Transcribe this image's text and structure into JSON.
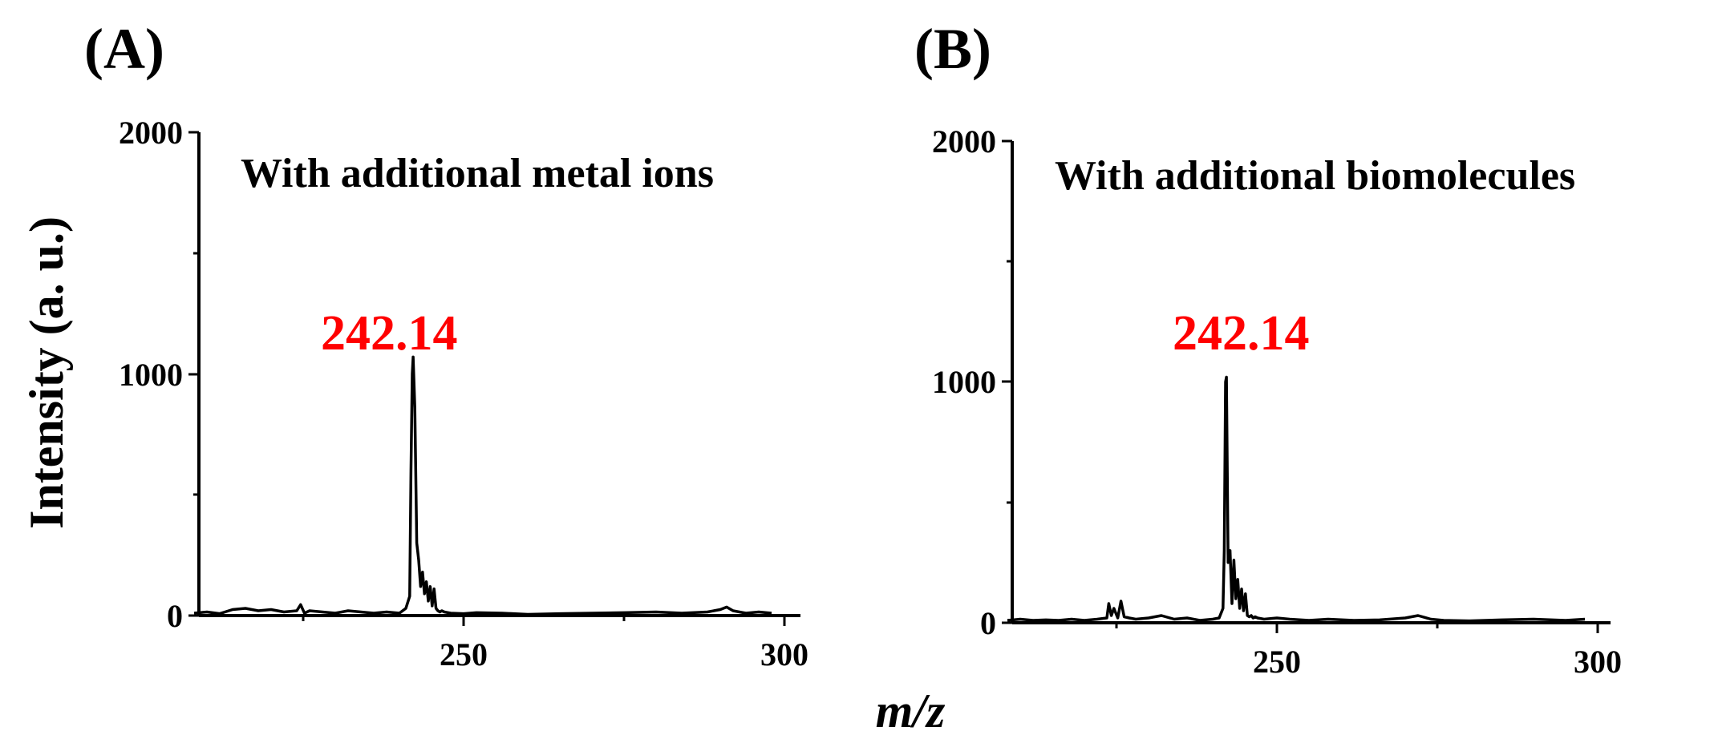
{
  "chart_data": [
    {
      "type": "line",
      "panel": "(A)",
      "annotation": "With additional metal ions",
      "xlabel": "m/z",
      "ylabel": "Intensity (a. u.)",
      "xlim": [
        208,
        300
      ],
      "ylim": [
        0,
        2000
      ],
      "xticks": [
        "250",
        "300"
      ],
      "yticks": [
        "0",
        "1000",
        "2000"
      ],
      "peak_label": "242.14",
      "peak_label_color": "#ff0000",
      "series": [
        {
          "x": [
            208,
            210,
            212,
            214,
            216,
            218,
            220,
            222,
            224,
            224.6,
            225.2,
            226,
            228,
            230,
            232,
            234,
            236,
            238,
            240,
            241,
            241.6,
            241.8,
            242.0,
            242.14,
            242.4,
            242.7,
            243.0,
            243.3,
            243.6,
            243.9,
            244.2,
            244.5,
            244.8,
            245.1,
            245.4,
            245.7,
            246.0,
            246.3,
            246.6,
            247,
            248,
            250,
            252,
            256,
            260,
            265,
            270,
            275,
            280,
            284,
            288,
            290,
            291,
            292,
            294,
            296,
            298
          ],
          "y": [
            10,
            15,
            8,
            25,
            30,
            20,
            25,
            15,
            20,
            45,
            10,
            20,
            15,
            10,
            20,
            15,
            10,
            15,
            10,
            30,
            80,
            600,
            1000,
            1070,
            860,
            300,
            230,
            120,
            180,
            90,
            140,
            60,
            120,
            40,
            110,
            30,
            20,
            15,
            20,
            15,
            10,
            8,
            12,
            10,
            5,
            8,
            10,
            12,
            15,
            10,
            15,
            25,
            35,
            20,
            10,
            15,
            10
          ]
        }
      ]
    },
    {
      "type": "line",
      "panel": "(B)",
      "annotation": "With additional biomolecules",
      "xlabel": "m/z",
      "ylabel": "",
      "xlim": [
        208,
        300
      ],
      "ylim": [
        0,
        2000
      ],
      "xticks": [
        "250",
        "300"
      ],
      "yticks": [
        "0",
        "1000",
        "2000"
      ],
      "peak_label": "242.14",
      "peak_label_color": "#ff0000",
      "series": [
        {
          "x": [
            208,
            210,
            212,
            214,
            216,
            218,
            220,
            222,
            223.5,
            223.8,
            224.2,
            224.6,
            225.2,
            225.7,
            226.2,
            227,
            228,
            230,
            232,
            234,
            236,
            238,
            240,
            241,
            241.6,
            241.8,
            242.0,
            242.14,
            242.4,
            242.7,
            243.0,
            243.3,
            243.6,
            243.9,
            244.2,
            244.5,
            244.8,
            245.1,
            245.4,
            245.7,
            246.0,
            246.3,
            246.6,
            247,
            248,
            250,
            252,
            255,
            258,
            262,
            266,
            270,
            272,
            274,
            276,
            280,
            285,
            290,
            295,
            298
          ],
          "y": [
            10,
            15,
            10,
            12,
            10,
            15,
            10,
            15,
            20,
            80,
            30,
            60,
            20,
            90,
            25,
            20,
            15,
            20,
            30,
            15,
            20,
            10,
            15,
            20,
            60,
            300,
            1000,
            1020,
            250,
            300,
            80,
            260,
            100,
            180,
            60,
            140,
            50,
            120,
            30,
            25,
            30,
            20,
            25,
            20,
            15,
            20,
            15,
            10,
            15,
            10,
            12,
            20,
            30,
            15,
            10,
            8,
            12,
            15,
            10,
            15
          ]
        }
      ]
    }
  ],
  "shared_xlabel": "m/z",
  "shared_ylabel": "Intensity (a. u.)"
}
